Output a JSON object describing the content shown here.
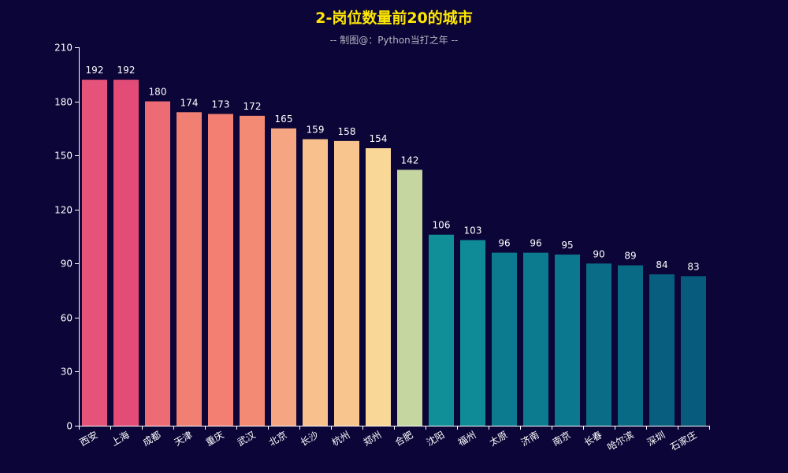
{
  "chart_data": {
    "type": "bar",
    "title": "2-岗位数量前20的城市",
    "subtitle": "-- 制图@：Python当打之年 --",
    "xlabel": "",
    "ylabel": "",
    "categories": [
      "西安",
      "上海",
      "成都",
      "天津",
      "重庆",
      "武汉",
      "北京",
      "长沙",
      "杭州",
      "郑州",
      "合肥",
      "沈阳",
      "福州",
      "太原",
      "济南",
      "南京",
      "长春",
      "哈尔滨",
      "深圳",
      "石家庄"
    ],
    "values": [
      192,
      192,
      180,
      174,
      173,
      172,
      165,
      159,
      158,
      154,
      142,
      106,
      103,
      96,
      96,
      95,
      90,
      89,
      84,
      83
    ],
    "colors": [
      "#e5527a",
      "#e44c78",
      "#ed6b74",
      "#f17f72",
      "#f27f72",
      "#f38a74",
      "#f5a582",
      "#f8c08c",
      "#f9c58e",
      "#f9d797",
      "#c6d6a0",
      "#108f98",
      "#0f8b98",
      "#0c7b8f",
      "#0c7a8f",
      "#0b788f",
      "#0a6c86",
      "#096a85",
      "#075e7e",
      "#075c7d"
    ],
    "ylim": [
      0,
      210
    ],
    "yticks": [
      0,
      30,
      60,
      90,
      120,
      150,
      180,
      210
    ],
    "grid": false,
    "legend": "none",
    "bar_labels": true
  },
  "theme": {
    "background": "#0c0537",
    "title_color": "#ffe800",
    "text_color": "#ffffff",
    "axis_color": "#ffffff"
  }
}
